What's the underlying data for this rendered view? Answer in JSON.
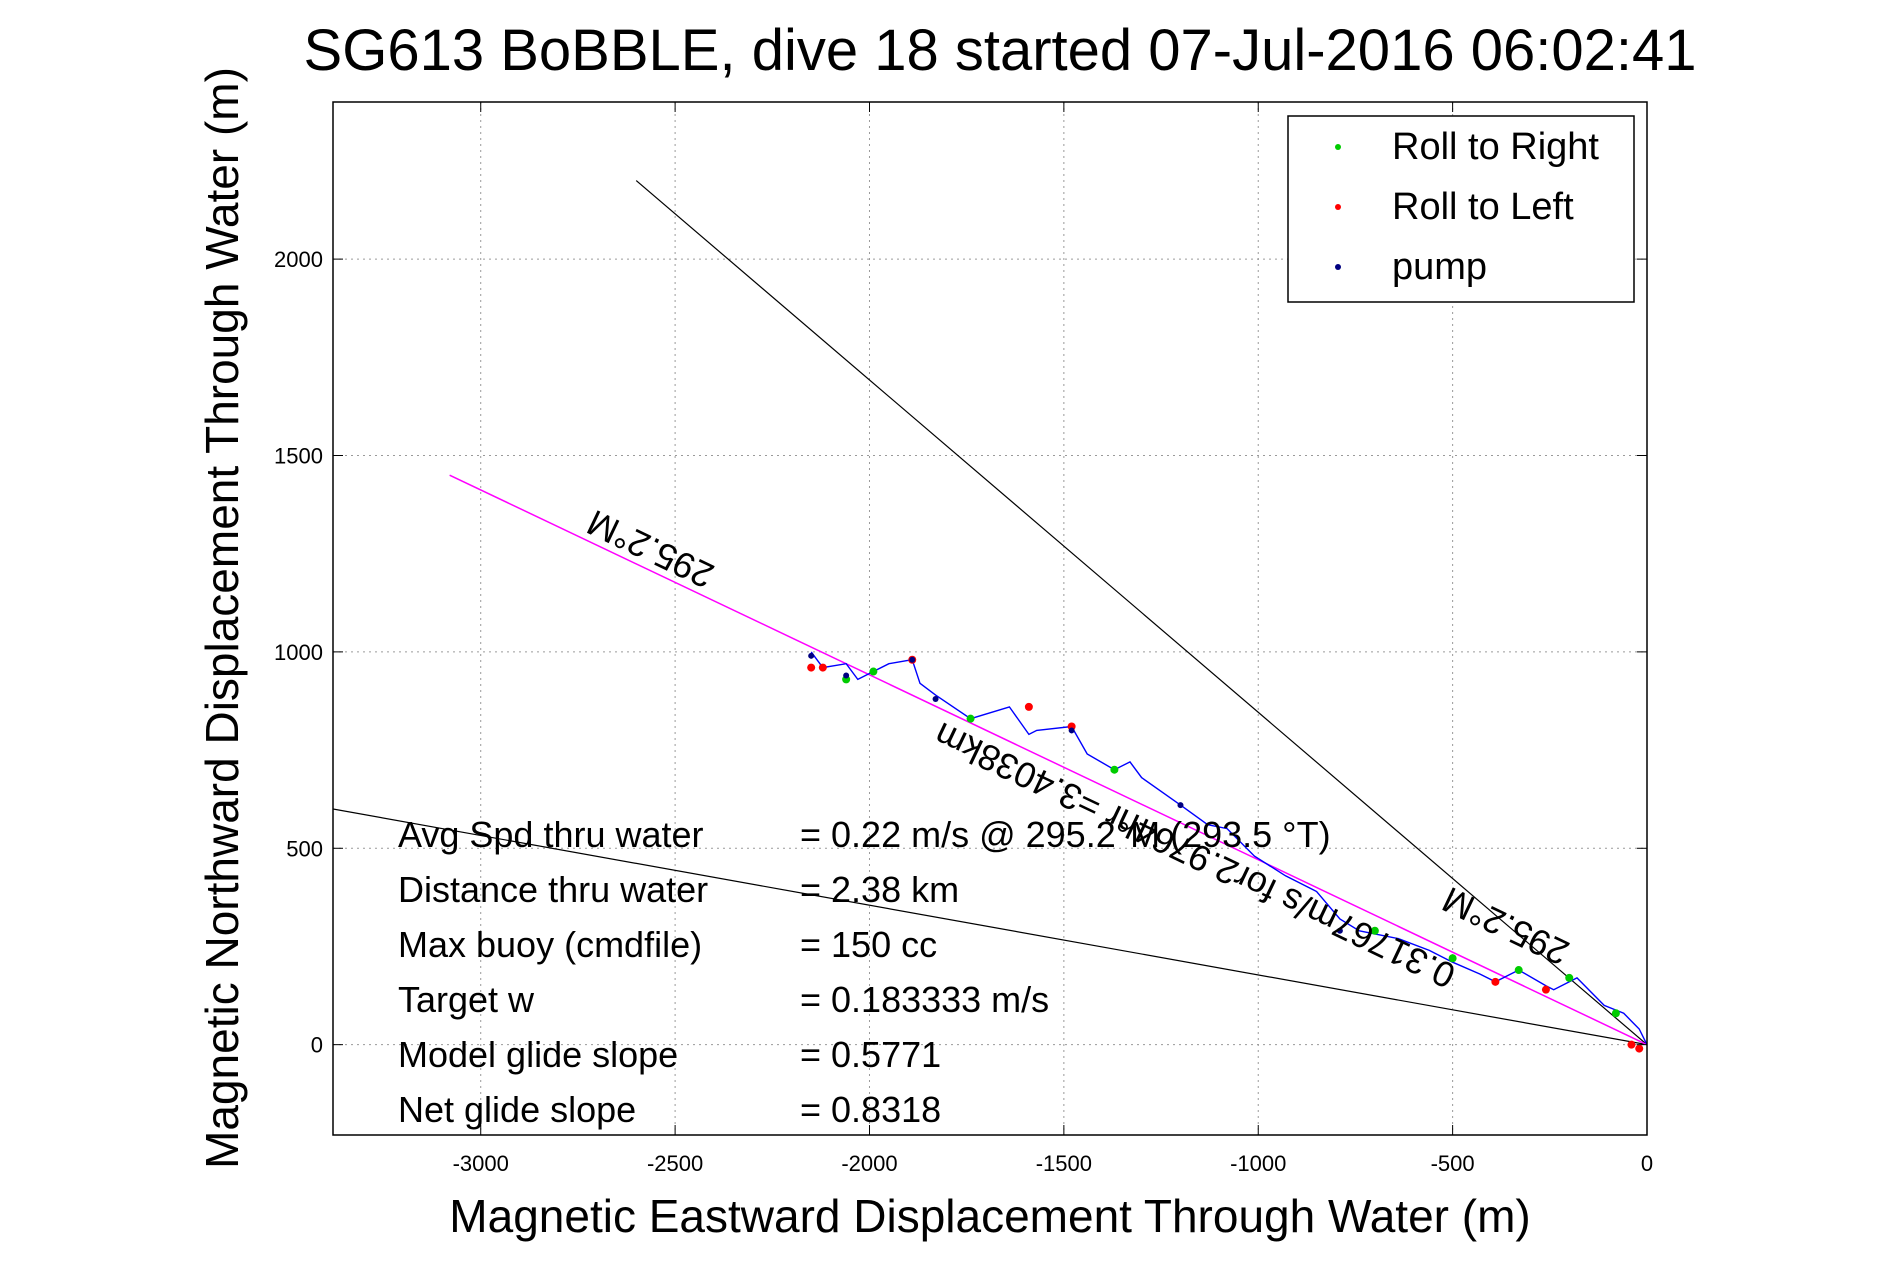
{
  "chart_data": {
    "type": "scatter",
    "title": "SG613 BoBBLE, dive 18 started 07-Jul-2016 06:02:41",
    "xlabel": "Magnetic Eastward Displacement Through Water (m)",
    "ylabel": "Magnetic Northward Displacement Through Water (m)",
    "xlim": [
      -3380,
      0
    ],
    "ylim": [
      -230,
      2400
    ],
    "xticks": [
      -3000,
      -2500,
      -2000,
      -1500,
      -1000,
      -500,
      0
    ],
    "yticks": [
      0,
      500,
      1000,
      1500,
      2000
    ],
    "grid": true,
    "legend_position": "top-right",
    "legend": [
      {
        "label": "Roll to Right",
        "color": "#00cc00"
      },
      {
        "label": "Roll to Left",
        "color": "#ff0000"
      },
      {
        "label": "pump",
        "color": "#000080"
      }
    ],
    "heading_line": {
      "color": "#ff00ff",
      "label": "295.2°M",
      "x": [
        -3080,
        0
      ],
      "y": [
        1450,
        0
      ]
    },
    "bounding_lines": [
      {
        "color": "#000000",
        "x": [
          -2600,
          0
        ],
        "y": [
          2200,
          0
        ]
      },
      {
        "color": "#000000",
        "x": [
          -3380,
          0
        ],
        "y": [
          600,
          0
        ]
      }
    ],
    "track": {
      "color": "#0000ff",
      "x": [
        -2150,
        -2120,
        -2060,
        -2030,
        -1990,
        -1950,
        -1890,
        -1870,
        -1830,
        -1740,
        -1640,
        -1590,
        -1570,
        -1480,
        -1440,
        -1370,
        -1330,
        -1300,
        -1200,
        -1130,
        -1080,
        -1010,
        -930,
        -850,
        -790,
        -740,
        -640,
        -560,
        -500,
        -430,
        -390,
        -330,
        -260,
        -240,
        -180,
        -110,
        -60,
        -40,
        -20,
        0
      ],
      "y": [
        1000,
        960,
        970,
        930,
        950,
        970,
        980,
        920,
        890,
        830,
        860,
        790,
        800,
        810,
        740,
        700,
        720,
        680,
        610,
        560,
        550,
        480,
        430,
        390,
        320,
        290,
        270,
        240,
        210,
        180,
        160,
        190,
        150,
        140,
        170,
        100,
        80,
        60,
        40,
        0
      ]
    },
    "roll_right_points": {
      "x": [
        -2060,
        -1990,
        -1740,
        -1370,
        -700,
        -500,
        -330,
        -200,
        -80
      ],
      "y": [
        930,
        950,
        830,
        700,
        290,
        220,
        190,
        170,
        80
      ]
    },
    "roll_left_points": {
      "x": [
        -2150,
        -2120,
        -1890,
        -1590,
        -1480,
        -390,
        -260,
        -40,
        -20
      ],
      "y": [
        960,
        960,
        980,
        860,
        810,
        160,
        140,
        0,
        -10
      ]
    },
    "pump_points": {
      "x": [
        -2150,
        -2060,
        -1890,
        -1830,
        -1480,
        -1200,
        -790
      ],
      "y": [
        990,
        940,
        980,
        880,
        800,
        610,
        290
      ]
    },
    "heading_labels": [
      {
        "text": "295.2°M"
      },
      {
        "text": "295.2°M"
      }
    ],
    "track_speed_label": "0.31767m/s for2.9764hr =3.4038km",
    "stats": [
      {
        "label": "Avg Spd thru water",
        "value": "=  0.22 m/s @ 295.2°M (293.5 °T)"
      },
      {
        "label": "Distance thru water",
        "value": "=  2.38 km"
      },
      {
        "label": "Max buoy (cmdfile)",
        "value": "= 150 cc"
      },
      {
        "label": "Target w",
        "value": "= 0.183333 m/s"
      },
      {
        "label": "Model glide slope",
        "value": "= 0.5771"
      },
      {
        "label": "Net glide slope",
        "value": "= 0.8318"
      }
    ]
  }
}
